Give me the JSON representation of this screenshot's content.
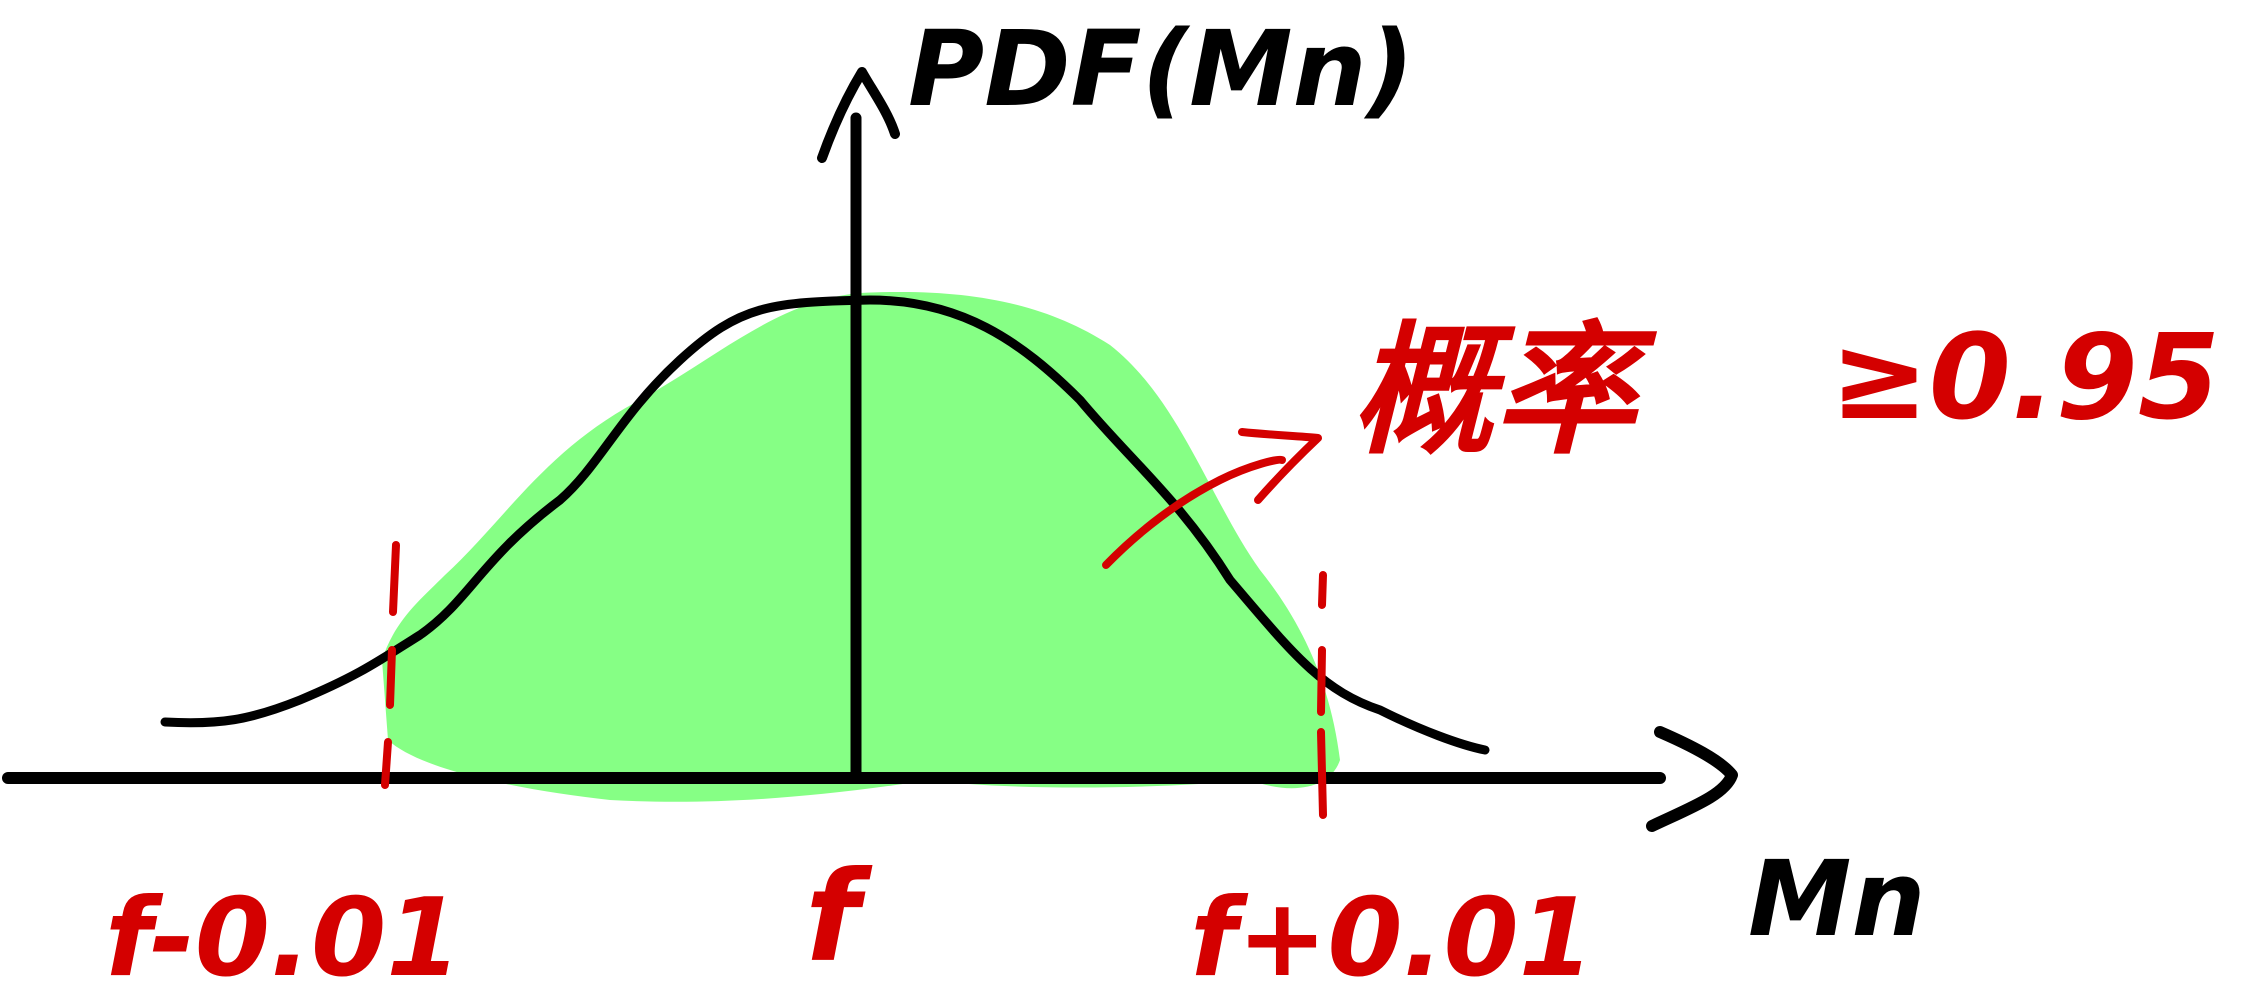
{
  "colors": {
    "curve": "#000000",
    "axes": "#000000",
    "fill": "#80FF7E",
    "annotation": "#D40000",
    "background": "#FFFFFF"
  },
  "labels": {
    "y_axis": "PDF(Mn)",
    "x_axis": "Mn",
    "center": "f",
    "left_bound": "f-0.01",
    "right_bound": "f+0.01",
    "probability_note": "概率",
    "probability_threshold": "≥0.95"
  }
}
